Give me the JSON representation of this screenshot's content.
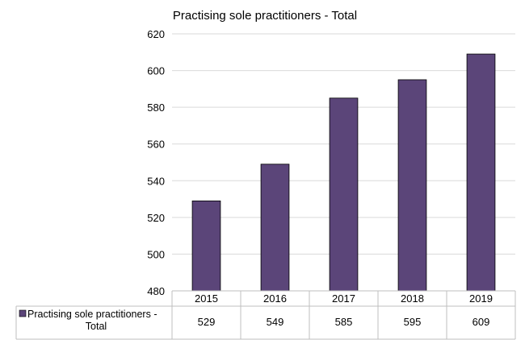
{
  "chart_data": {
    "type": "bar",
    "title": "Practising sole practitioners - Total",
    "xlabel": "",
    "ylabel": "",
    "categories": [
      "2015",
      "2016",
      "2017",
      "2018",
      "2019"
    ],
    "series": [
      {
        "name": "Practising sole practitioners - Total",
        "values": [
          529,
          549,
          585,
          595,
          609
        ]
      }
    ],
    "value_labels": [
      "529",
      "549",
      "585",
      "595",
      "609"
    ],
    "ylim": [
      480,
      620
    ],
    "yticks": [
      "480",
      "500",
      "520",
      "540",
      "560",
      "580",
      "600",
      "620"
    ],
    "grid": true,
    "legend": "data-table",
    "legend_label_lines": [
      "Practising sole practitioners -",
      "Total"
    ],
    "colors": {
      "bar": "#5b4579",
      "grid": "#d9d9d9",
      "axis": "#a6a6a6",
      "table_border": "#bfbfbf"
    }
  }
}
